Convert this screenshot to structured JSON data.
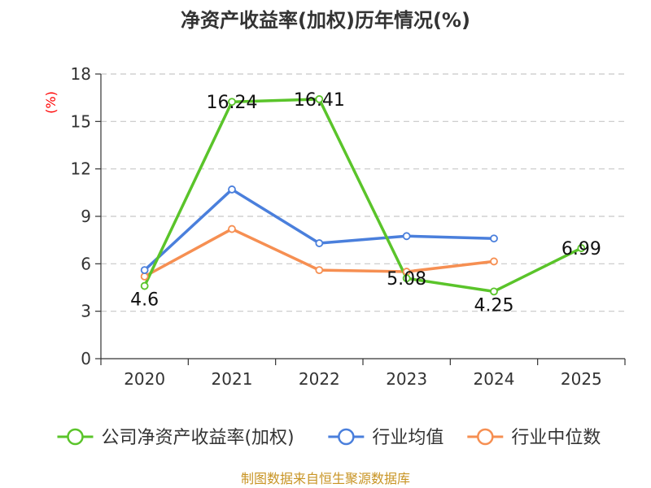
{
  "chart_data": {
    "type": "line",
    "title": "净资产收益率(加权)历年情况(%)",
    "ylabel": "(%)",
    "xlabel": "",
    "categories": [
      "2020",
      "2021",
      "2022",
      "2023",
      "2024",
      "2025"
    ],
    "ylim": [
      0,
      18
    ],
    "yticks": [
      "0",
      "3",
      "6",
      "9",
      "12",
      "15",
      "18"
    ],
    "grid": true,
    "legend_position": "bottom",
    "series": [
      {
        "name": "公司净资产收益率(加权)",
        "color": "#5ac42a",
        "values": [
          4.6,
          16.24,
          16.41,
          5.08,
          4.25,
          6.99
        ],
        "labels": [
          "4.6",
          "16.24",
          "16.41",
          "5.08",
          "4.25",
          "6.99"
        ]
      },
      {
        "name": "行业均值",
        "color": "#4a7fdc",
        "values": [
          5.6,
          10.7,
          7.3,
          7.75,
          7.6,
          null
        ]
      },
      {
        "name": "行业中位数",
        "color": "#f68f52",
        "values": [
          5.2,
          8.2,
          5.6,
          5.5,
          6.15,
          null
        ]
      }
    ],
    "source": "制图数据来自恒生聚源数据库"
  }
}
